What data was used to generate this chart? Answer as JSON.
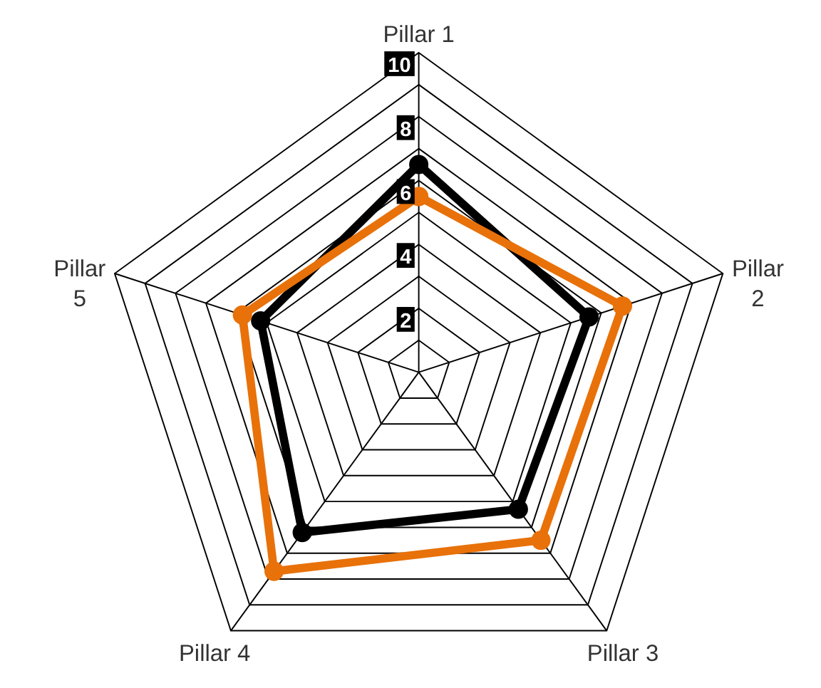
{
  "chart_data": {
    "type": "radar",
    "categories": [
      "Pillar 1",
      "Pillar 2",
      "Pillar 3",
      "Pillar 4",
      "Pillar 5"
    ],
    "series": [
      {
        "color": "#000000",
        "values": [
          6.5,
          5.6,
          5.3,
          6.2,
          5.2
        ]
      },
      {
        "color": "#e8710a",
        "values": [
          5.5,
          6.7,
          6.5,
          7.7,
          5.8
        ]
      }
    ],
    "ylim": [
      0,
      10
    ],
    "yticks": [
      2,
      4,
      6,
      8,
      10
    ],
    "marker": "circle",
    "line_style": "solid",
    "grid": true
  }
}
